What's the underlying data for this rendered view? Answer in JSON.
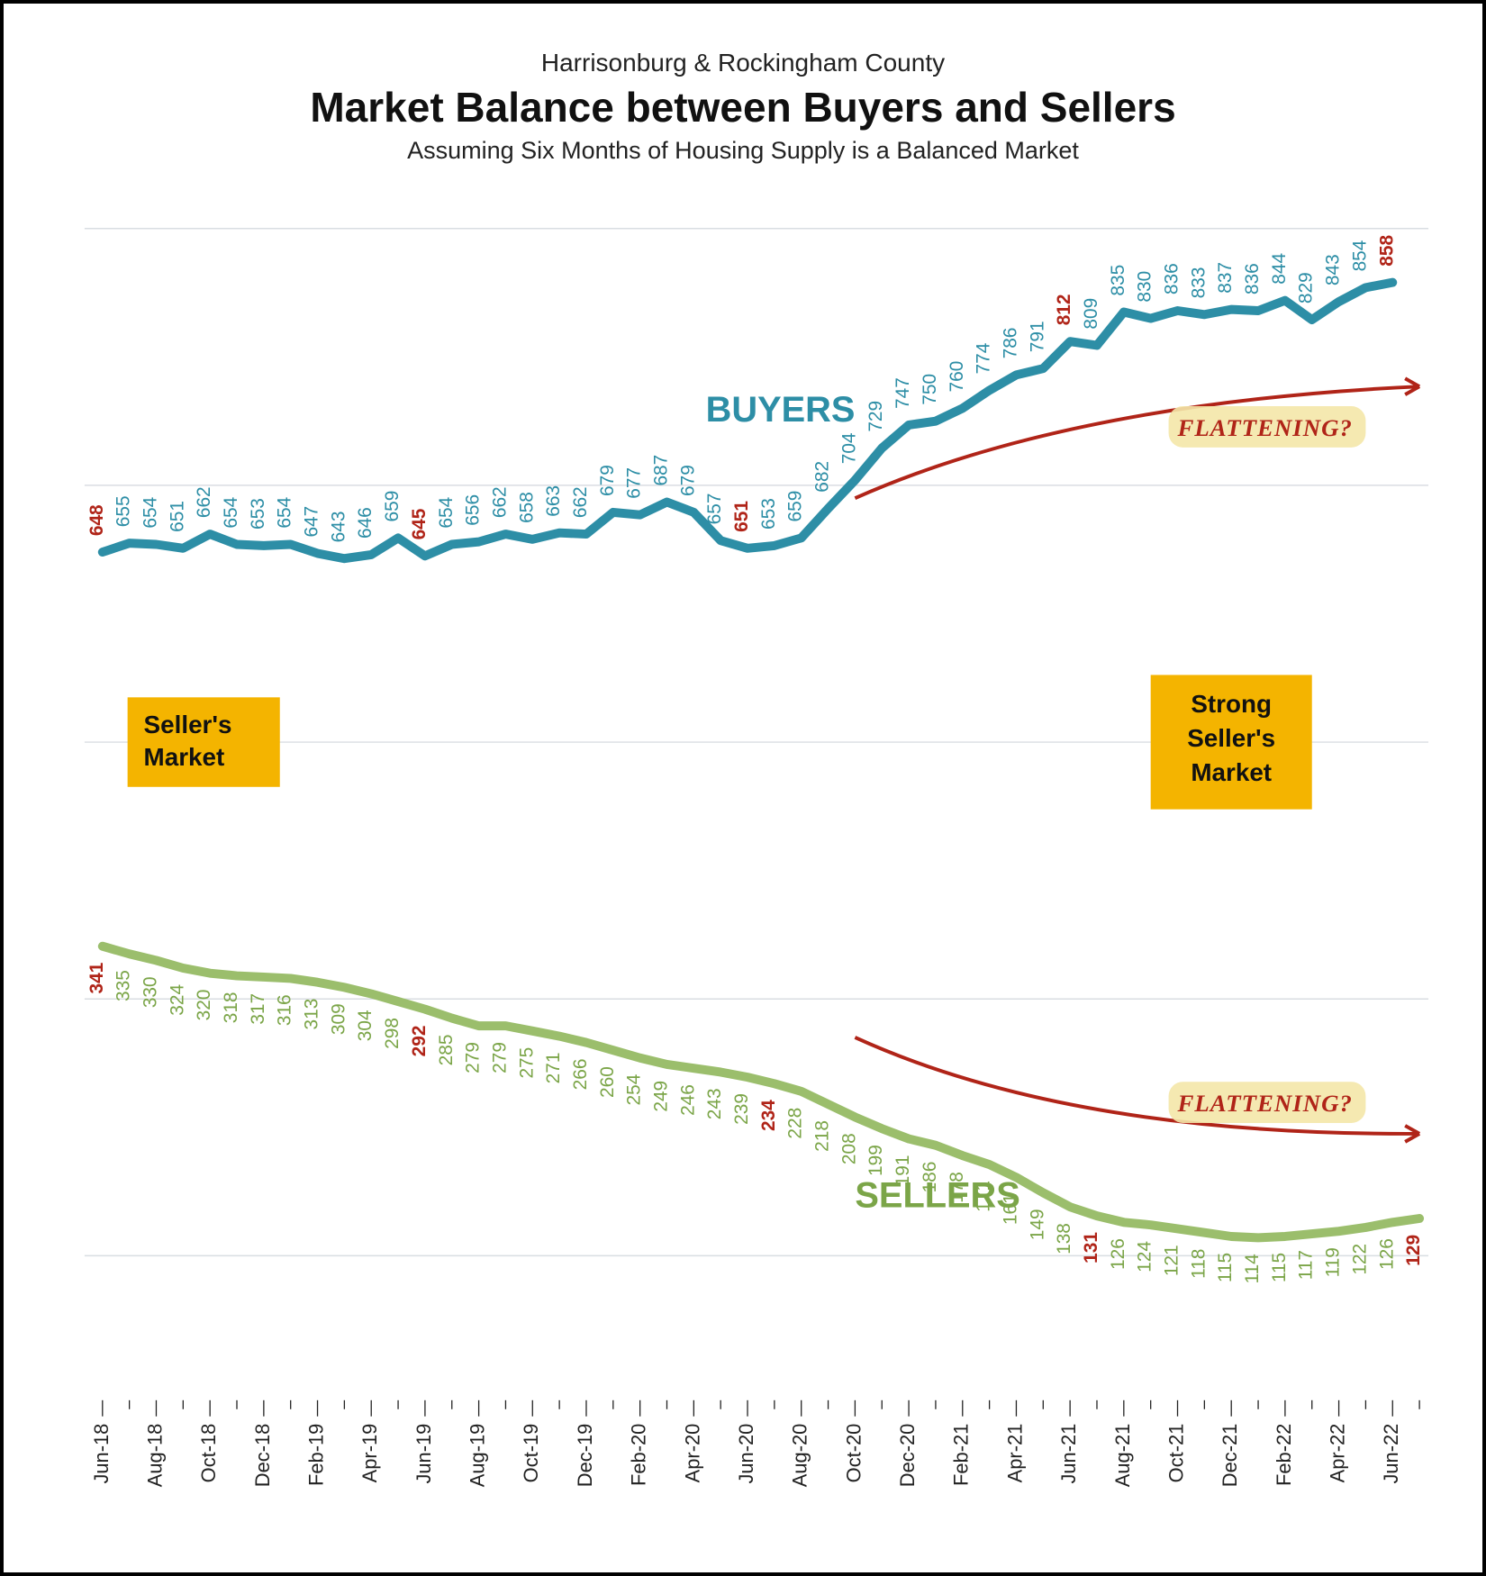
{
  "supertitle": "Harrisonburg & Rockingham County",
  "title": "Market Balance between Buyers and Sellers",
  "subtitle": "Assuming Six Months of Housing Supply is a Balanced Market",
  "chart": {
    "type": "line",
    "background": "#ffffff",
    "grid_color": "#d9dde2",
    "ylim": [
      0,
      900
    ],
    "gridlines_y": [
      100,
      300,
      500,
      700,
      900
    ],
    "buyers": {
      "label": "BUYERS",
      "color": "#2d8ea6",
      "line_width": 10,
      "label_fontsize": 40
    },
    "sellers": {
      "label": "SELLERS",
      "color": "#9bbe6c",
      "line_width": 10,
      "label_fontsize": 40
    },
    "highlight_color": "#b02418",
    "datalabel_fontsize": 21,
    "xlabel_fontsize": 22,
    "points": [
      {
        "m": "Jun-18",
        "xl": "Jun-18",
        "b": 648,
        "s": 341,
        "bh": true,
        "sh": true
      },
      {
        "m": "Jul-18",
        "xl": "",
        "b": 655,
        "s": 335
      },
      {
        "m": "Aug-18",
        "xl": "Aug-18",
        "b": 654,
        "s": 330
      },
      {
        "m": "Sep-18",
        "xl": "",
        "b": 651,
        "s": 324
      },
      {
        "m": "Oct-18",
        "xl": "Oct-18",
        "b": 662,
        "s": 320
      },
      {
        "m": "Nov-18",
        "xl": "",
        "b": 654,
        "s": 318
      },
      {
        "m": "Dec-18",
        "xl": "Dec-18",
        "b": 653,
        "s": 317
      },
      {
        "m": "Jan-19",
        "xl": "",
        "b": 654,
        "s": 316
      },
      {
        "m": "Feb-19",
        "xl": "Feb-19",
        "b": 647,
        "s": 313
      },
      {
        "m": "Mar-19",
        "xl": "",
        "b": 643,
        "s": 309
      },
      {
        "m": "Apr-19",
        "xl": "Apr-19",
        "b": 646,
        "s": 304
      },
      {
        "m": "May-19",
        "xl": "",
        "b": 659,
        "s": 298
      },
      {
        "m": "Jun-19",
        "xl": "Jun-19",
        "b": 645,
        "s": 292,
        "bh": true,
        "sh": true
      },
      {
        "m": "Jul-19",
        "xl": "",
        "b": 654,
        "s": 285
      },
      {
        "m": "Aug-19",
        "xl": "Aug-19",
        "b": 656,
        "s": 279
      },
      {
        "m": "Sep-19",
        "xl": "",
        "b": 662,
        "s": 279
      },
      {
        "m": "Oct-19",
        "xl": "Oct-19",
        "b": 658,
        "s": 275
      },
      {
        "m": "Nov-19",
        "xl": "",
        "b": 663,
        "s": 271
      },
      {
        "m": "Dec-19",
        "xl": "Dec-19",
        "b": 662,
        "s": 266
      },
      {
        "m": "Jan-20",
        "xl": "",
        "b": 679,
        "s": 260
      },
      {
        "m": "Feb-20",
        "xl": "Feb-20",
        "b": 677,
        "s": 254
      },
      {
        "m": "Mar-20",
        "xl": "",
        "b": 687,
        "s": 249
      },
      {
        "m": "Apr-20",
        "xl": "Apr-20",
        "b": 679,
        "s": 246
      },
      {
        "m": "May-20",
        "xl": "",
        "b": 657,
        "s": 243
      },
      {
        "m": "Jun-20",
        "xl": "Jun-20",
        "b": 651,
        "s": 239,
        "bh": true
      },
      {
        "m": "Jul-20",
        "xl": "",
        "b": 653,
        "s": 234,
        "sh": true
      },
      {
        "m": "Aug-20",
        "xl": "Aug-20",
        "b": 659,
        "s": 228
      },
      {
        "m": "Sep-20",
        "xl": "",
        "b": 682,
        "s": 218
      },
      {
        "m": "Oct-20",
        "xl": "Oct-20",
        "b": 704,
        "s": 208
      },
      {
        "m": "Nov-20",
        "xl": "",
        "b": 729,
        "s": 199
      },
      {
        "m": "Dec-20",
        "xl": "Dec-20",
        "b": 747,
        "s": 191
      },
      {
        "m": "Jan-21",
        "xl": "",
        "b": 750,
        "s": 186
      },
      {
        "m": "Feb-21",
        "xl": "Feb-21",
        "b": 760,
        "s": 178
      },
      {
        "m": "Mar-21",
        "xl": "",
        "b": 774,
        "s": 171
      },
      {
        "m": "Apr-21",
        "xl": "Apr-21",
        "b": 786,
        "s": 161
      },
      {
        "m": "May-21",
        "xl": "",
        "b": 791,
        "s": 149
      },
      {
        "m": "Jun-21",
        "xl": "Jun-21",
        "b": 812,
        "s": 138,
        "bh": true
      },
      {
        "m": "Jul-21",
        "xl": "",
        "b": 809,
        "s": 131,
        "sh": true
      },
      {
        "m": "Aug-21",
        "xl": "Aug-21",
        "b": 835,
        "s": 126
      },
      {
        "m": "Sep-21",
        "xl": "",
        "b": 830,
        "s": 124
      },
      {
        "m": "Oct-21",
        "xl": "Oct-21",
        "b": 836,
        "s": 121
      },
      {
        "m": "Nov-21",
        "xl": "",
        "b": 833,
        "s": 118
      },
      {
        "m": "Dec-21",
        "xl": "Dec-21",
        "b": 837,
        "s": 115
      },
      {
        "m": "Jan-22",
        "xl": "",
        "b": 836,
        "s": 114
      },
      {
        "m": "Feb-22",
        "xl": "Feb-22",
        "b": 844,
        "s": 115
      },
      {
        "m": "Mar-22",
        "xl": "",
        "b": 829,
        "s": 117
      },
      {
        "m": "Apr-22",
        "xl": "Apr-22",
        "b": 843,
        "s": 119
      },
      {
        "m": "May-22",
        "xl": "",
        "b": 854,
        "s": 122
      },
      {
        "m": "Jun-22",
        "xl": "Jun-22",
        "b": 858,
        "s": 126,
        "bh": true
      },
      {
        "m": "Jul-22",
        "xl": "",
        "b": null,
        "s": 129,
        "sh": true
      }
    ],
    "badges": {
      "left": {
        "lines": [
          "Seller's",
          "Market"
        ],
        "bg": "#f4b400",
        "fontsize": 28
      },
      "right": {
        "lines": [
          "Strong",
          "Seller's",
          "Market"
        ],
        "bg": "#f4b400",
        "fontsize": 28
      }
    },
    "annotations": {
      "flattening_text": "FLATTENING?",
      "fontsize": 27,
      "color": "#b02418",
      "highlight_bg": "#f4e7a8"
    }
  }
}
